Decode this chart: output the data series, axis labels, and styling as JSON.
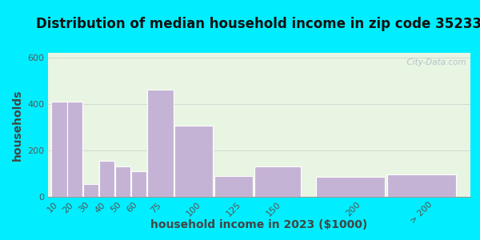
{
  "title": "Distribution of median household income in zip code 35233",
  "xlabel": "household income in 2023 ($1000)",
  "ylabel": "households",
  "bar_labels": [
    "10",
    "20",
    "30",
    "40",
    "50",
    "60",
    "75",
    "100",
    "125",
    "150",
    "200",
    "> 200"
  ],
  "bar_left_edges": [
    5,
    15,
    25,
    35,
    45,
    55,
    65,
    82,
    107,
    132,
    170,
    215
  ],
  "bar_right_edges": [
    15,
    25,
    35,
    45,
    55,
    65,
    82,
    107,
    132,
    162,
    215,
    260
  ],
  "bar_tick_pos": [
    10,
    20,
    30,
    40,
    50,
    60,
    75,
    100,
    125,
    150,
    200,
    245
  ],
  "bar_heights": [
    410,
    410,
    55,
    155,
    130,
    110,
    460,
    305,
    90,
    130,
    85,
    95
  ],
  "bar_color": "#c5b3d5",
  "bar_edgecolor": "#ffffff",
  "ylim": [
    0,
    620
  ],
  "xlim": [
    3,
    268
  ],
  "yticks": [
    0,
    200,
    400,
    600
  ],
  "background_outer": "#00eeff",
  "background_plot": "#e8f5e2",
  "title_fontsize": 12,
  "axis_label_fontsize": 10,
  "tick_fontsize": 8,
  "title_color": "#111111",
  "tick_color": "#555555",
  "label_color": "#444444",
  "watermark": "  City-Data.com"
}
